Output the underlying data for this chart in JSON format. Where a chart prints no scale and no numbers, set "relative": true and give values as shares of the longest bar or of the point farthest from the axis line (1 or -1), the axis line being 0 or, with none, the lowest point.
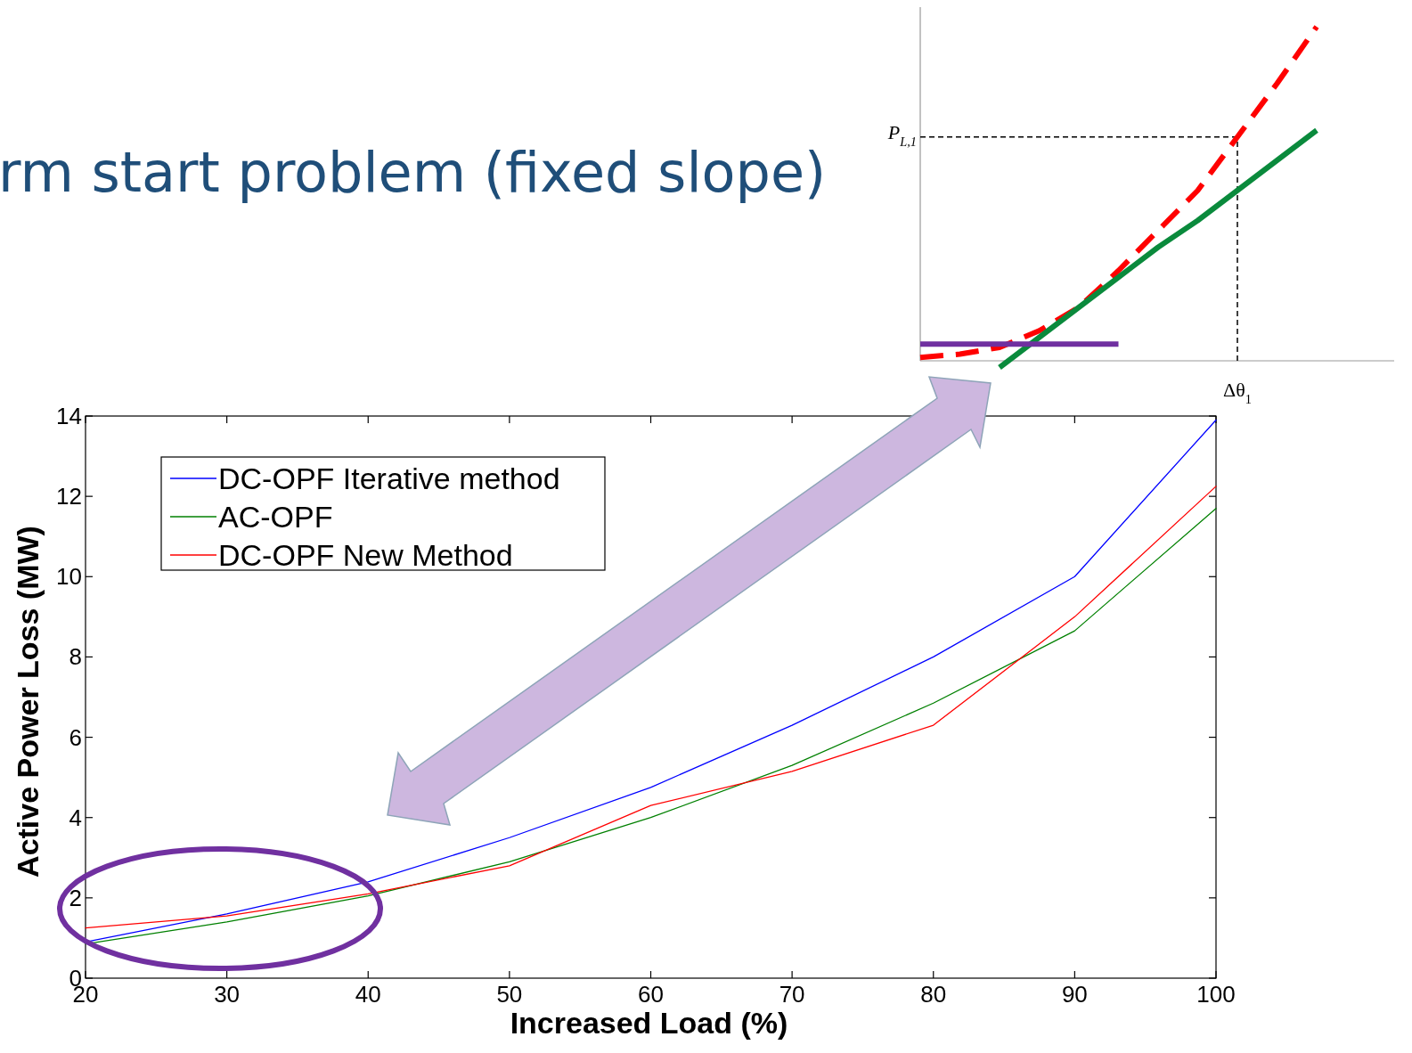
{
  "chart_data": [
    {
      "type": "line",
      "title": "rm start problem (fixed slope)",
      "xlabel": "Increased Load (%)",
      "ylabel": "Active Power Loss (MW)",
      "x": [
        20,
        30,
        40,
        50,
        60,
        70,
        80,
        90,
        100
      ],
      "xlim": [
        20,
        100
      ],
      "xticks": [
        20,
        30,
        40,
        50,
        60,
        70,
        80,
        90,
        100
      ],
      "ylim": [
        0,
        14
      ],
      "yticks": [
        0,
        2,
        4,
        6,
        8,
        10,
        12,
        14
      ],
      "legend": "top left",
      "marker": "none",
      "grid": false,
      "series": [
        {
          "name": "DC-OPF Iterative method",
          "color": "#0000ff",
          "values": [
            0.9,
            1.6,
            2.4,
            3.5,
            4.75,
            6.3,
            8.0,
            10.0,
            13.9
          ]
        },
        {
          "name": "AC-OPF",
          "color": "#008000",
          "values": [
            0.85,
            1.4,
            2.05,
            2.9,
            4.0,
            5.3,
            6.85,
            8.65,
            11.7
          ]
        },
        {
          "name": "DC-OPF New Method",
          "color": "#ff0000",
          "values": [
            1.25,
            1.55,
            2.1,
            2.8,
            4.3,
            5.15,
            6.3,
            9.0,
            12.25
          ]
        }
      ]
    },
    {
      "type": "line",
      "relative": true,
      "categories": [
        null,
        null,
        null,
        null,
        null,
        null,
        null,
        null,
        null,
        null,
        null
      ],
      "marker": "none",
      "annotations": [
        "Δθ$_{1}$"
      ],
      "ref_lines": [
        {
          "axis": "y",
          "value": 0.67,
          "label": "P$_{L,1}$",
          "line_style": "dashed",
          "color": "#000000"
        }
      ],
      "series": [
        {
          "color": "#ff0000",
          "line_style": "dashed",
          "values": [
            0.01,
            0.02,
            0.04,
            0.09,
            0.16,
            0.27,
            0.39,
            0.51,
            0.67,
            0.83,
            1.0
          ]
        },
        {
          "color": "#0a8a3c",
          "line_style": "solid",
          "values": [
            null,
            null,
            -0.02,
            0.07,
            0.16,
            0.25,
            0.34,
            0.42,
            0.51,
            0.6,
            0.69
          ]
        },
        {
          "color": "#7030a0",
          "line_style": "solid",
          "values": [
            0.05,
            0.05,
            0.05,
            0.05,
            0.05,
            0.05,
            null,
            null,
            null,
            null,
            null
          ]
        }
      ]
    }
  ]
}
